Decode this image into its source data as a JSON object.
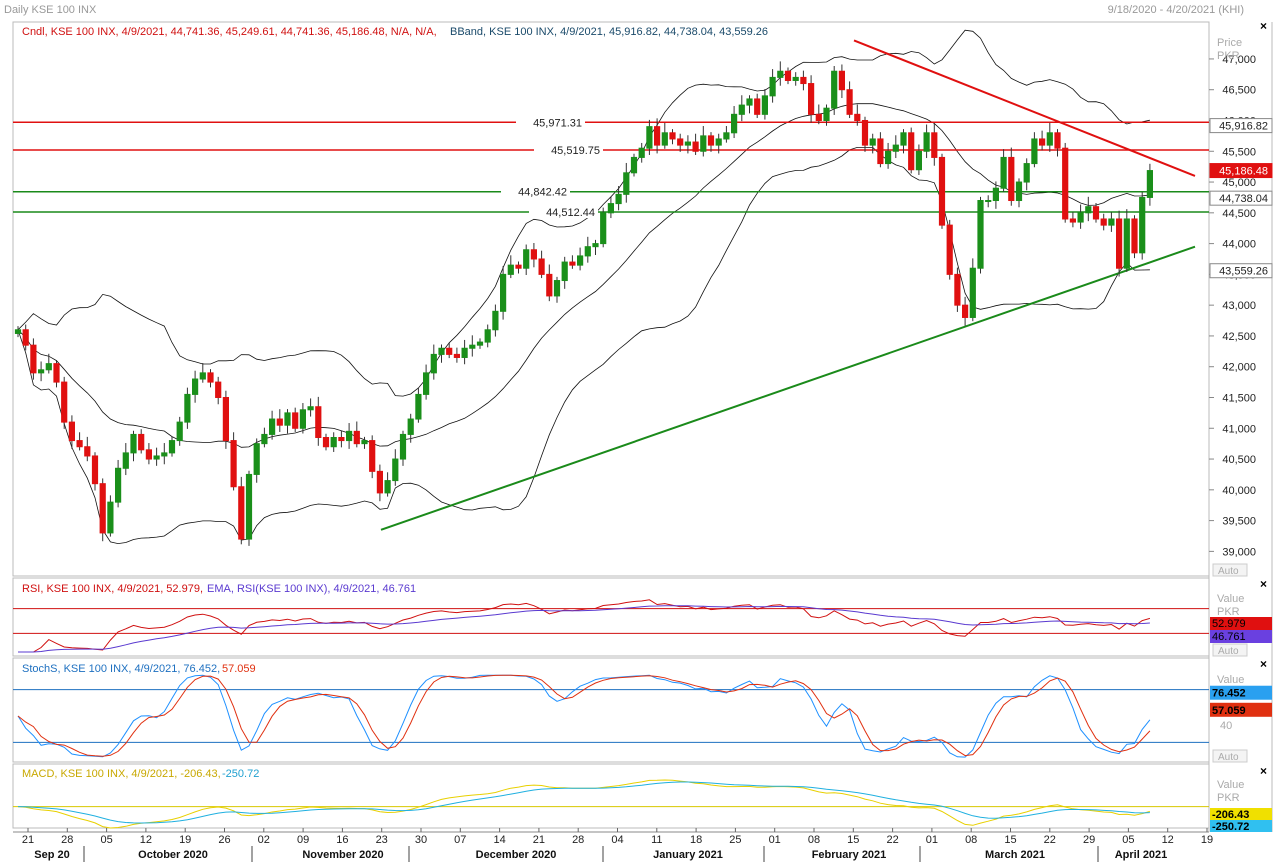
{
  "header": {
    "title": "Daily KSE 100 INX",
    "date_range": "9/18/2020 - 4/20/2021 (KHI)"
  },
  "legend": {
    "candle": "Cndl, KSE 100 INX, 4/9/2021, 44,741.36, 45,249.61, 44,741.36, 45,186.48, N/A, N/A,",
    "bband": "BBand, KSE 100 INX, 4/9/2021, 45,916.82, 44,738.04, 43,559.26",
    "rsi_a": "RSI, KSE 100 INX, 4/9/2021, 52.979,",
    "rsi_b": "EMA, RSI(KSE 100 INX), 4/9/2021, 46.761",
    "stoch_a": "StochS, KSE 100 INX, 4/9/2021, 76.452,",
    "stoch_b": "57.059",
    "macd_a": "MACD, KSE 100 INX, 4/9/2021, -206.43,",
    "macd_b": "-250.72"
  },
  "axis": {
    "price_title_1": "Price",
    "price_title_2": "PKR",
    "value_title_1": "Value",
    "value_title_2": "PKR",
    "value_title": "Value",
    "auto": "Auto",
    "stoch_level": "40"
  },
  "colors": {
    "up": "#1a8f1a",
    "down": "#e01010",
    "support": "#1a8a1a",
    "resistance": "#e01010",
    "bband": "#111111",
    "rsi": "#d01010",
    "rsi_ema": "#5a3ad0",
    "stoch_k": "#1e90ff",
    "stoch_d": "#e03010",
    "macd": "#e8d000",
    "macd_signal": "#20b0e0"
  },
  "chart_data": [
    {
      "type": "candlestick",
      "title": "Daily KSE 100 INX",
      "ylabel": "Price PKR",
      "ylim": [
        38600,
        47600
      ],
      "yticks": [
        39000,
        39500,
        40000,
        40500,
        41000,
        41500,
        42000,
        42500,
        43000,
        43500,
        44000,
        44500,
        45000,
        45500,
        46000,
        46500,
        47000
      ],
      "ytick_labels": [
        "39,000",
        "39,500",
        "40,000",
        "40,500",
        "41,000",
        "41,500",
        "42,000",
        "42,500",
        "43,000",
        "43,500",
        "44,000",
        "44,500",
        "45,000",
        "45,500",
        "46,000",
        "46,500",
        "47,000"
      ],
      "xticks": [
        "21",
        "28",
        "05",
        "12",
        "19",
        "26",
        "02",
        "09",
        "16",
        "23",
        "30",
        "07",
        "14",
        "21",
        "28",
        "04",
        "11",
        "18",
        "25",
        "01",
        "08",
        "15",
        "22",
        "01",
        "08",
        "15",
        "22",
        "29",
        "05",
        "12",
        "19"
      ],
      "months": [
        "Sep 20",
        "October 2020",
        "November 2020",
        "December 2020",
        "January 2021",
        "February 2021",
        "March 2021",
        "April 2021"
      ],
      "last": {
        "date": "4/9/2021",
        "open": 44741.36,
        "high": 45249.61,
        "low": 44741.36,
        "close": 45186.48
      },
      "bband_last": {
        "upper": 45916.82,
        "middle": 44738.04,
        "lower": 43559.26
      },
      "horizontal_lines": [
        {
          "label": "45,971.31",
          "value": 45971.31,
          "color": "red"
        },
        {
          "label": "45,519.75",
          "value": 45519.75,
          "color": "red"
        },
        {
          "label": "44,842.42",
          "value": 44842.42,
          "color": "green"
        },
        {
          "label": "44,512.44",
          "value": 44512.44,
          "color": "green"
        }
      ],
      "trendlines": [
        {
          "name": "resistance",
          "from": [
            "2021-02-17",
            47300
          ],
          "to": [
            "2021-04-20",
            45100
          ]
        },
        {
          "name": "support",
          "from": [
            "2020-11-23",
            39350
          ],
          "to": [
            "2021-04-20",
            43950
          ]
        }
      ],
      "closes": [
        42600,
        42350,
        41900,
        41950,
        42050,
        41750,
        41100,
        40800,
        40700,
        40550,
        40100,
        39300,
        39800,
        40350,
        40600,
        40900,
        40650,
        40500,
        40550,
        40600,
        40800,
        41100,
        41550,
        41800,
        41900,
        41750,
        41500,
        40800,
        40050,
        39200,
        40250,
        40750,
        40900,
        41150,
        41050,
        41250,
        41000,
        41300,
        41350,
        40850,
        40700,
        40850,
        40800,
        40950,
        40750,
        40800,
        40300,
        39950,
        40150,
        40500,
        40900,
        41150,
        41550,
        41900,
        42200,
        42300,
        42200,
        42150,
        42300,
        42350,
        42400,
        42600,
        42900,
        43500,
        43650,
        43600,
        43900,
        43750,
        43500,
        43150,
        43400,
        43700,
        43650,
        43800,
        43950,
        44000,
        44500,
        44650,
        44800,
        45150,
        45400,
        45550,
        45900,
        45600,
        45800,
        45700,
        45600,
        45650,
        45500,
        45750,
        45600,
        45700,
        45800,
        46100,
        46250,
        46350,
        46100,
        46400,
        46700,
        46800,
        46650,
        46700,
        46600,
        46100,
        46000,
        46200,
        46800,
        46500,
        46100,
        46000,
        45600,
        45700,
        45300,
        45500,
        45600,
        45800,
        45200,
        45500,
        45800,
        45400,
        44300,
        43500,
        43000,
        42800,
        43600,
        44700,
        44700,
        44900,
        45400,
        44700,
        45000,
        45300,
        45700,
        45600,
        45800,
        45550,
        44400,
        44350,
        44500,
        44600,
        44400,
        44300,
        44400,
        43600,
        44400,
        43850,
        44750,
        45186.48
      ],
      "opens_from_prev": true,
      "rsi": {
        "name": "RSI",
        "last": 52.979,
        "ema_last": 46.761,
        "upper": 70,
        "lower": 30
      },
      "stochastic": {
        "k_last": 76.452,
        "d_last": 57.059,
        "upper": 80,
        "lower": 20,
        "label_level": 40
      },
      "macd": {
        "macd_last": -206.43,
        "signal_last": -250.72
      }
    }
  ]
}
